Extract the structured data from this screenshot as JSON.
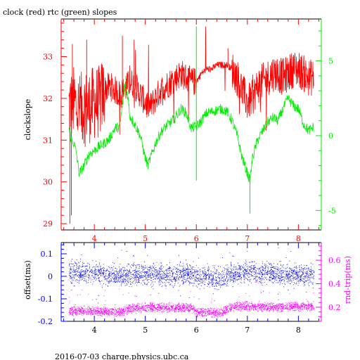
{
  "footer": "2016-07-03 charge.physics.ubc.ca",
  "colors": {
    "clock": "#ff0000",
    "rtc": "#00ee00",
    "offset": "#0000ff",
    "rndtrip": "#ff00ff",
    "axis_black": "#000000"
  },
  "chart_data": [
    {
      "type": "line",
      "title": "clock (red) rtc (green) slopes",
      "ylabel": "clockslope",
      "xlim": [
        3.35,
        8.45
      ],
      "x_ticks": [
        "4",
        "5",
        "6",
        "7",
        "8"
      ],
      "x_tick_color": "red",
      "left_axis": {
        "label": "clockslope",
        "ylim": [
          28.85,
          33.9
        ],
        "ticks": [
          "29",
          "30",
          "31",
          "32",
          "33"
        ],
        "color": "#ff0000"
      },
      "right_axis": {
        "ylim": [
          -6.3,
          7.8
        ],
        "ticks": [
          "-5",
          "0",
          "5"
        ],
        "color": "#00ee00"
      },
      "grid": false,
      "series": [
        {
          "axis": "left",
          "color": "#ff0000",
          "points": [
            [
              3.5,
              31.8
            ],
            [
              3.6,
              31.9
            ],
            [
              3.7,
              31.7
            ],
            [
              3.8,
              31.8
            ],
            [
              3.9,
              31.8
            ],
            [
              4.0,
              31.9
            ],
            [
              4.1,
              31.9
            ],
            [
              4.2,
              32.2
            ],
            [
              4.3,
              32.3
            ],
            [
              4.4,
              32.2
            ],
            [
              4.5,
              32.1
            ],
            [
              4.6,
              32.2
            ],
            [
              4.7,
              32.4
            ],
            [
              4.8,
              32.3
            ],
            [
              4.9,
              32.1
            ],
            [
              5.0,
              31.9
            ],
            [
              5.1,
              31.8
            ],
            [
              5.2,
              32.0
            ],
            [
              5.3,
              32.2
            ],
            [
              5.4,
              32.3
            ],
            [
              5.5,
              32.4
            ],
            [
              5.6,
              32.5
            ],
            [
              5.7,
              32.6
            ],
            [
              5.8,
              32.5
            ],
            [
              5.9,
              32.4
            ],
            [
              6.0,
              32.4
            ],
            [
              6.1,
              32.6
            ],
            [
              6.2,
              32.7
            ],
            [
              6.3,
              32.7
            ],
            [
              6.4,
              32.8
            ],
            [
              6.5,
              32.8
            ],
            [
              6.6,
              32.8
            ],
            [
              6.7,
              32.7
            ],
            [
              6.8,
              32.5
            ],
            [
              6.9,
              32.2
            ],
            [
              7.0,
              31.9
            ],
            [
              7.1,
              32.0
            ],
            [
              7.2,
              32.3
            ],
            [
              7.3,
              32.4
            ],
            [
              7.4,
              32.5
            ],
            [
              7.5,
              32.6
            ],
            [
              7.6,
              32.6
            ],
            [
              7.7,
              32.5
            ],
            [
              7.8,
              32.6
            ],
            [
              7.9,
              32.7
            ],
            [
              8.0,
              32.7
            ],
            [
              8.1,
              32.6
            ],
            [
              8.2,
              32.5
            ],
            [
              8.3,
              32.5
            ]
          ]
        },
        {
          "axis": "right",
          "color": "#00ee00",
          "points": [
            [
              3.5,
              0.5
            ],
            [
              3.55,
              -0.3
            ],
            [
              3.6,
              -0.5
            ],
            [
              3.65,
              -1.2
            ],
            [
              3.7,
              -2.5
            ],
            [
              3.75,
              -2.3
            ],
            [
              3.8,
              -2.0
            ],
            [
              3.9,
              -1.2
            ],
            [
              4.0,
              -1.0
            ],
            [
              4.1,
              -0.7
            ],
            [
              4.2,
              -0.5
            ],
            [
              4.3,
              -0.2
            ],
            [
              4.4,
              0.5
            ],
            [
              4.5,
              0.6
            ],
            [
              4.55,
              2.0
            ],
            [
              4.6,
              3.5
            ],
            [
              4.65,
              2.8
            ],
            [
              4.7,
              1.3
            ],
            [
              4.8,
              0.7
            ],
            [
              4.9,
              0.0
            ],
            [
              5.0,
              -1.5
            ],
            [
              5.05,
              -2.0
            ],
            [
              5.1,
              -1.5
            ],
            [
              5.2,
              -0.5
            ],
            [
              5.3,
              0.2
            ],
            [
              5.4,
              0.6
            ],
            [
              5.5,
              0.9
            ],
            [
              5.6,
              1.3
            ],
            [
              5.7,
              1.8
            ],
            [
              5.8,
              1.5
            ],
            [
              5.9,
              0.5
            ],
            [
              6.0,
              0.6
            ],
            [
              6.1,
              1.0
            ],
            [
              6.2,
              1.5
            ],
            [
              6.3,
              1.6
            ],
            [
              6.4,
              1.7
            ],
            [
              6.5,
              1.8
            ],
            [
              6.6,
              1.6
            ],
            [
              6.7,
              1.0
            ],
            [
              6.8,
              0.0
            ],
            [
              6.9,
              -1.5
            ],
            [
              7.0,
              -2.5
            ],
            [
              7.05,
              -3.0
            ],
            [
              7.1,
              -1.5
            ],
            [
              7.2,
              -0.3
            ],
            [
              7.3,
              0.3
            ],
            [
              7.4,
              0.9
            ],
            [
              7.5,
              1.2
            ],
            [
              7.6,
              1.0
            ],
            [
              7.7,
              1.8
            ],
            [
              7.8,
              2.5
            ],
            [
              7.9,
              2.0
            ],
            [
              8.0,
              1.8
            ],
            [
              8.1,
              0.8
            ],
            [
              8.2,
              0.3
            ],
            [
              8.3,
              0.6
            ]
          ]
        }
      ]
    },
    {
      "type": "scatter",
      "title": "",
      "xlim": [
        3.35,
        8.45
      ],
      "x_ticks": [
        "4",
        "5",
        "6",
        "7",
        "8"
      ],
      "x_tick_color": "black",
      "left_axis": {
        "label": "offset(ms)",
        "ylim": [
          -0.2,
          0.15
        ],
        "ticks": [
          "0.1",
          "0",
          "-0.1",
          "-0.2"
        ],
        "color": "#0000ff"
      },
      "right_axis": {
        "label": "rnd-trip(ms)",
        "ylim": [
          0.08,
          0.75
        ],
        "ticks": [
          "0.6",
          "0.4",
          "0.2"
        ],
        "color": "#ff00ff"
      },
      "grid": false,
      "series": [
        {
          "axis": "left",
          "color": "#0000ff",
          "points": [
            [
              3.5,
              0.02
            ],
            [
              4.0,
              0.015
            ],
            [
              4.5,
              0.005
            ],
            [
              5.0,
              0.01
            ],
            [
              5.5,
              0.005
            ],
            [
              5.8,
              0.02
            ],
            [
              6.0,
              0.0
            ],
            [
              6.5,
              -0.01
            ],
            [
              6.7,
              0.015
            ],
            [
              7.0,
              0.02
            ],
            [
              7.5,
              0.015
            ],
            [
              8.0,
              0.01
            ],
            [
              8.3,
              0.005
            ]
          ]
        },
        {
          "axis": "right",
          "color": "#ff00ff",
          "points": [
            [
              3.5,
              0.17
            ],
            [
              4.0,
              0.17
            ],
            [
              4.5,
              0.16
            ],
            [
              4.7,
              0.19
            ],
            [
              5.0,
              0.2
            ],
            [
              5.5,
              0.2
            ],
            [
              5.9,
              0.2
            ],
            [
              6.0,
              0.16
            ],
            [
              6.5,
              0.16
            ],
            [
              6.7,
              0.21
            ],
            [
              7.0,
              0.21
            ],
            [
              7.5,
              0.2
            ],
            [
              8.0,
              0.21
            ],
            [
              8.3,
              0.21
            ]
          ]
        }
      ]
    }
  ]
}
